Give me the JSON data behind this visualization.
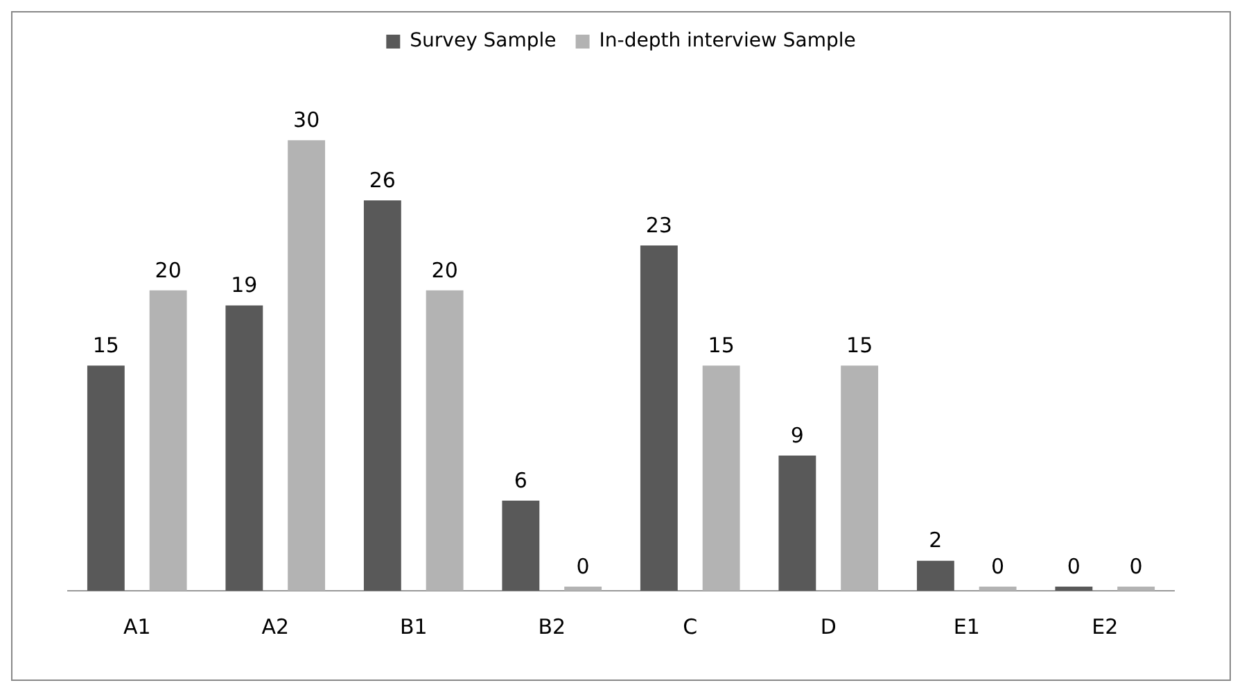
{
  "chart_data": {
    "type": "bar",
    "categories": [
      "A1",
      "A2",
      "B1",
      "B2",
      "C",
      "D",
      "E1",
      "E2"
    ],
    "series": [
      {
        "name": "Survey Sample",
        "color": "#595959",
        "values": [
          15,
          19,
          26,
          6,
          23,
          9,
          2,
          0
        ]
      },
      {
        "name": "In-depth interview Sample",
        "color": "#b3b3b3",
        "values": [
          20,
          30,
          20,
          0,
          15,
          15,
          0,
          0
        ]
      }
    ],
    "data_labels": true,
    "legend": "top",
    "grid": false
  }
}
